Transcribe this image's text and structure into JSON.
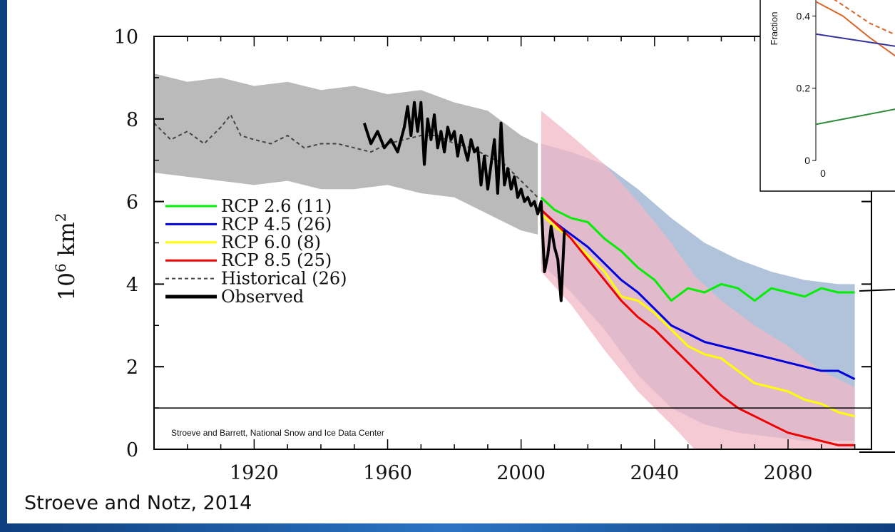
{
  "citation": "Stroeve and Notz, 2014",
  "chart_data": [
    {
      "type": "line",
      "title": "",
      "xlabel": "",
      "ylabel": "10⁶ km²",
      "xlim": [
        1890,
        2105
      ],
      "ylim": [
        0,
        10
      ],
      "x_ticks": [
        1920,
        1960,
        2000,
        2040,
        2080
      ],
      "y_ticks": [
        0,
        2,
        4,
        6,
        8,
        10
      ],
      "legend_position": "middle-left",
      "annotation": "Stroeve and Barrett, National Snow and Ice Data Center",
      "threshold_line_y": 1,
      "colors": {
        "rcp26": "#00ee00",
        "rcp45": "#0000dd",
        "rcp60": "#ffff00",
        "rcp85": "#ee0000",
        "historical": "#444444",
        "observed": "#000000",
        "hist_band": "#b3b3b3",
        "rcp45_band": "#a9bcd6",
        "rcp85_band": "#f2b8c6"
      },
      "legend": [
        {
          "key": "rcp26",
          "label": "RCP 2.6 (11)"
        },
        {
          "key": "rcp45",
          "label": "RCP 4.5 (26)"
        },
        {
          "key": "rcp60",
          "label": "RCP 6.0 (8)"
        },
        {
          "key": "rcp85",
          "label": "RCP 8.5 (25)"
        },
        {
          "key": "historical",
          "label": "Historical (26)"
        },
        {
          "key": "observed",
          "label": "Observed"
        }
      ],
      "series": [
        {
          "key": "historical",
          "x": [
            1890,
            1895,
            1900,
            1905,
            1910,
            1913,
            1916,
            1920,
            1925,
            1930,
            1935,
            1940,
            1945,
            1950,
            1955,
            1960,
            1965,
            1970,
            1975,
            1980,
            1985,
            1990,
            1995,
            2000,
            2005
          ],
          "y": [
            7.9,
            7.5,
            7.7,
            7.4,
            7.8,
            8.1,
            7.6,
            7.5,
            7.4,
            7.6,
            7.3,
            7.4,
            7.4,
            7.3,
            7.2,
            7.4,
            7.5,
            7.6,
            7.6,
            7.4,
            7.3,
            7.1,
            6.9,
            6.5,
            6.1
          ]
        },
        {
          "key": "observed",
          "x": [
            1953,
            1955,
            1957,
            1959,
            1961,
            1963,
            1965,
            1966,
            1967,
            1968,
            1969,
            1970,
            1971,
            1972,
            1973,
            1974,
            1975,
            1976,
            1977,
            1978,
            1979,
            1980,
            1981,
            1982,
            1983,
            1984,
            1985,
            1986,
            1987,
            1988,
            1989,
            1990,
            1991,
            1992,
            1993,
            1994,
            1995,
            1996,
            1997,
            1998,
            1999,
            2000,
            2001,
            2002,
            2003,
            2004,
            2005,
            2006,
            2007,
            2008,
            2009,
            2010,
            2011,
            2012,
            2013
          ],
          "y": [
            7.9,
            7.4,
            7.7,
            7.3,
            7.5,
            7.2,
            7.8,
            8.3,
            7.6,
            8.4,
            7.7,
            8.4,
            6.9,
            8.0,
            7.5,
            8.1,
            7.3,
            7.7,
            7.2,
            7.8,
            7.5,
            7.7,
            7.1,
            7.6,
            7.3,
            7.0,
            7.5,
            7.2,
            7.3,
            6.4,
            7.1,
            6.3,
            6.9,
            7.5,
            6.2,
            7.9,
            6.4,
            6.8,
            6.3,
            6.6,
            6.1,
            6.3,
            6.0,
            6.1,
            5.9,
            6.0,
            5.7,
            6.0,
            4.3,
            4.7,
            5.4,
            4.9,
            4.6,
            3.6,
            5.3
          ]
        },
        {
          "key": "rcp26",
          "x": [
            2006,
            2010,
            2015,
            2020,
            2025,
            2030,
            2035,
            2040,
            2045,
            2050,
            2055,
            2060,
            2065,
            2070,
            2075,
            2080,
            2085,
            2090,
            2095,
            2100
          ],
          "y": [
            6.1,
            5.8,
            5.6,
            5.5,
            5.1,
            4.8,
            4.4,
            4.1,
            3.6,
            3.9,
            3.8,
            4.0,
            3.9,
            3.6,
            3.9,
            3.8,
            3.7,
            3.9,
            3.8,
            3.8
          ]
        },
        {
          "key": "rcp45",
          "x": [
            2006,
            2010,
            2015,
            2020,
            2025,
            2030,
            2035,
            2040,
            2045,
            2050,
            2055,
            2060,
            2065,
            2070,
            2075,
            2080,
            2085,
            2090,
            2095,
            2100
          ],
          "y": [
            5.8,
            5.5,
            5.2,
            4.9,
            4.5,
            4.1,
            3.8,
            3.4,
            3.0,
            2.8,
            2.6,
            2.5,
            2.4,
            2.3,
            2.2,
            2.1,
            2.0,
            1.9,
            1.9,
            1.7
          ]
        },
        {
          "key": "rcp60",
          "x": [
            2006,
            2010,
            2015,
            2020,
            2025,
            2030,
            2035,
            2040,
            2045,
            2050,
            2055,
            2060,
            2065,
            2070,
            2075,
            2080,
            2085,
            2090,
            2095,
            2100
          ],
          "y": [
            5.7,
            5.4,
            5.1,
            4.7,
            4.3,
            3.7,
            3.6,
            3.3,
            2.9,
            2.5,
            2.3,
            2.2,
            1.9,
            1.6,
            1.5,
            1.4,
            1.2,
            1.1,
            0.9,
            0.8
          ]
        },
        {
          "key": "rcp85",
          "x": [
            2006,
            2010,
            2015,
            2020,
            2025,
            2030,
            2035,
            2040,
            2045,
            2050,
            2055,
            2060,
            2065,
            2070,
            2075,
            2080,
            2085,
            2090,
            2095,
            2100
          ],
          "y": [
            5.8,
            5.5,
            5.1,
            4.6,
            4.1,
            3.6,
            3.2,
            2.9,
            2.5,
            2.1,
            1.7,
            1.3,
            1.0,
            0.8,
            0.6,
            0.4,
            0.3,
            0.2,
            0.1,
            0.1
          ]
        }
      ],
      "bands": [
        {
          "key": "hist_band",
          "x": [
            1890,
            1900,
            1910,
            1920,
            1930,
            1940,
            1950,
            1960,
            1970,
            1980,
            1990,
            2000,
            2005
          ],
          "upper": [
            9.1,
            8.9,
            9.0,
            8.8,
            8.9,
            8.7,
            8.8,
            8.6,
            8.7,
            8.4,
            8.2,
            7.6,
            7.4
          ],
          "lower": [
            6.7,
            6.6,
            6.5,
            6.4,
            6.5,
            6.3,
            6.3,
            6.4,
            6.2,
            6.1,
            5.7,
            5.3,
            5.2
          ]
        },
        {
          "key": "rcp45_band",
          "x": [
            2006,
            2015,
            2025,
            2035,
            2045,
            2055,
            2065,
            2075,
            2085,
            2095,
            2100
          ],
          "upper": [
            7.4,
            7.2,
            6.9,
            6.3,
            5.6,
            5.0,
            4.6,
            4.3,
            4.1,
            4.0,
            4.0
          ],
          "lower": [
            4.5,
            3.8,
            2.9,
            1.8,
            1.0,
            0.6,
            0.4,
            0.3,
            0.2,
            0.2,
            0.2
          ]
        },
        {
          "key": "rcp85_band",
          "x": [
            2006,
            2015,
            2025,
            2035,
            2045,
            2052,
            2060,
            2070,
            2080,
            2090,
            2100
          ],
          "upper": [
            8.2,
            7.6,
            6.9,
            6.0,
            5.0,
            4.2,
            3.6,
            3.0,
            2.5,
            1.9,
            1.5
          ],
          "lower": [
            4.3,
            3.5,
            2.4,
            1.4,
            0.6,
            0.0,
            0.0,
            0.0,
            0.0,
            0.0,
            0.0
          ]
        }
      ]
    },
    {
      "type": "line",
      "title": "",
      "ylabel": "Fraction",
      "y_ticks": [
        0,
        0.2,
        0.4
      ],
      "x_ticks": [
        0
      ],
      "xlim": [
        0,
        1
      ],
      "ylim": [
        0,
        0.45
      ],
      "partial": true,
      "series": [
        {
          "key": "inset_orange",
          "x": [
            0.0,
            0.1,
            0.2,
            0.35
          ],
          "y": [
            0.44,
            0.4,
            0.34,
            0.26
          ]
        },
        {
          "key": "inset_orange_dashed",
          "x": [
            0.0,
            0.1,
            0.2,
            0.35
          ],
          "y": [
            0.48,
            0.43,
            0.38,
            0.33
          ]
        },
        {
          "key": "inset_blue",
          "x": [
            0.0,
            0.35
          ],
          "y": [
            0.35,
            0.31
          ]
        },
        {
          "key": "inset_green",
          "x": [
            0.0,
            0.35
          ],
          "y": [
            0.1,
            0.15
          ]
        }
      ]
    }
  ]
}
